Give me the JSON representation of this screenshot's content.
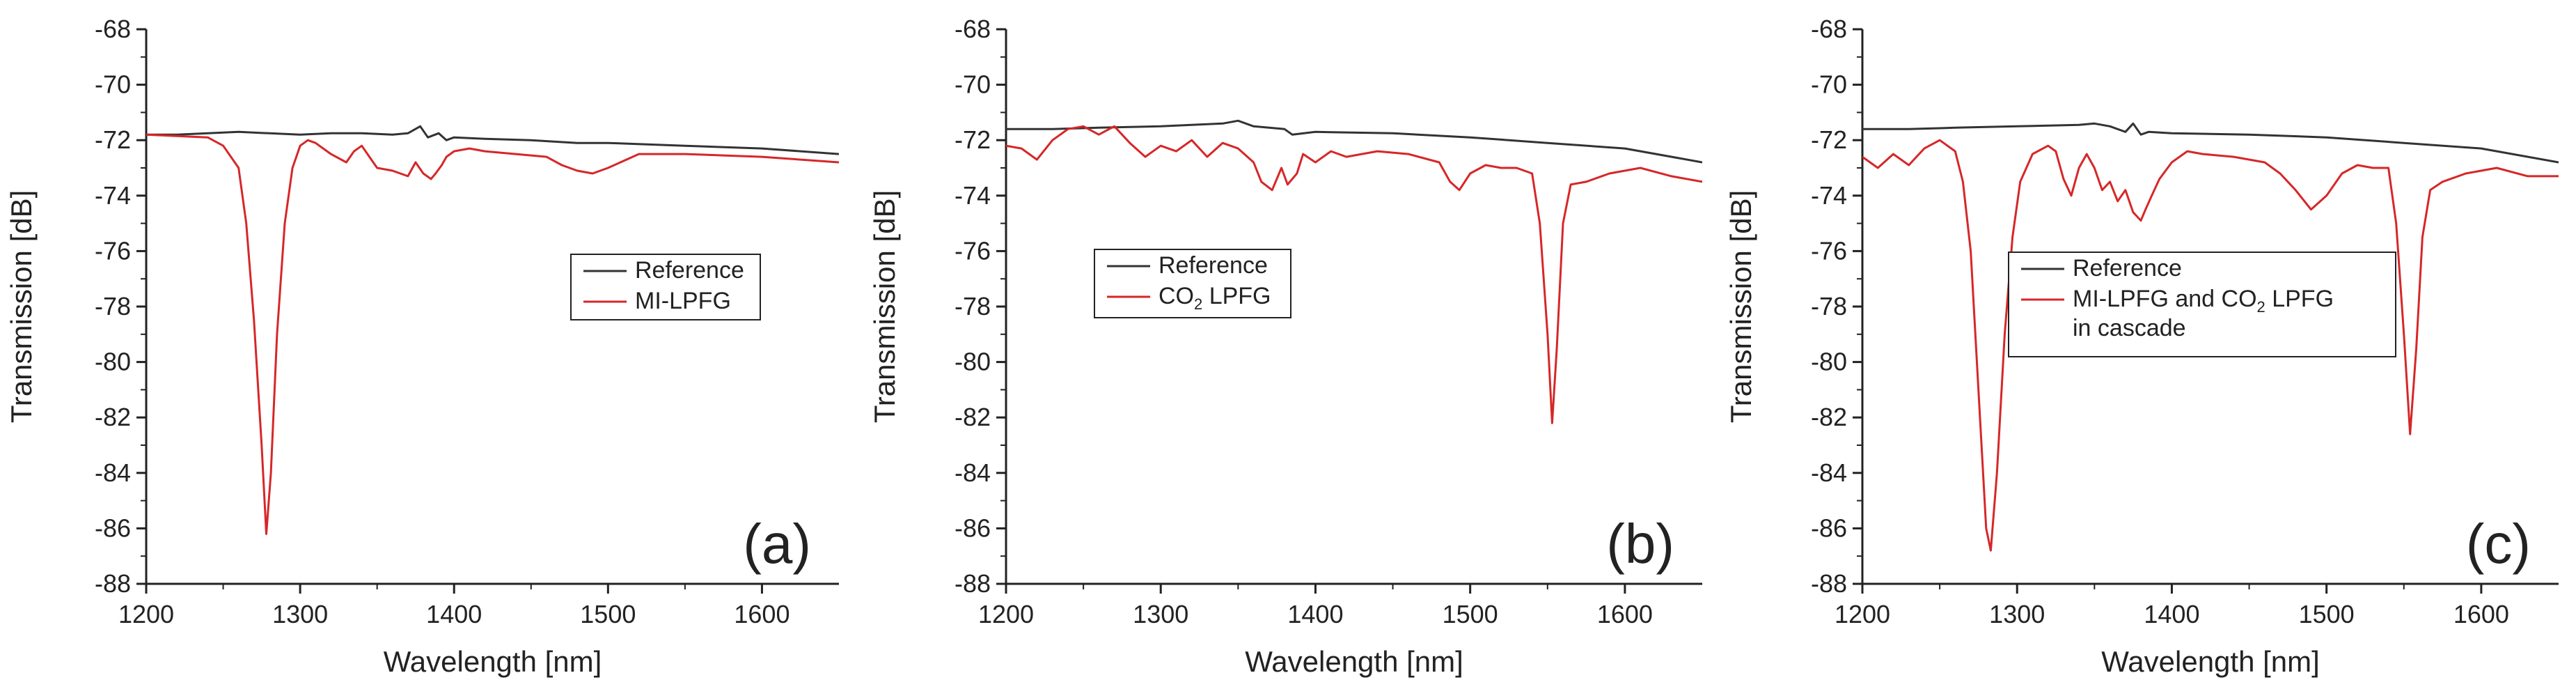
{
  "figure": {
    "panels": [
      "a",
      "b",
      "c"
    ]
  },
  "chart_data": [
    {
      "type": "line",
      "panel_label": "(a)",
      "xlabel": "Wavelength [nm]",
      "ylabel": "Transmission [dB]",
      "xlim": [
        1200,
        1650
      ],
      "ylim": [
        -88,
        -68
      ],
      "xticks": [
        1200,
        1300,
        1400,
        1500,
        1600
      ],
      "xtick_labels": [
        "1200",
        "1300",
        "1400",
        "1500",
        "1600"
      ],
      "yticks": [
        -68,
        -70,
        -72,
        -74,
        -76,
        -78,
        -80,
        -82,
        -84,
        -86,
        -88
      ],
      "ytick_labels": [
        "-68",
        "-70",
        "-72",
        "-74",
        "-76",
        "-78",
        "-80",
        "-82",
        "-84",
        "-86",
        "-88"
      ],
      "legend": {
        "placement": "center-right",
        "entries": [
          {
            "label": "Reference",
            "color": "#333333"
          },
          {
            "label": "MI-LPFG",
            "color": "#d62728"
          }
        ]
      },
      "series": [
        {
          "name": "Reference",
          "color": "#333333",
          "x": [
            1200,
            1220,
            1240,
            1260,
            1280,
            1300,
            1320,
            1340,
            1360,
            1370,
            1378,
            1383,
            1390,
            1395,
            1400,
            1420,
            1450,
            1480,
            1500,
            1550,
            1600,
            1650
          ],
          "y": [
            -71.8,
            -71.8,
            -71.75,
            -71.7,
            -71.75,
            -71.8,
            -71.75,
            -71.75,
            -71.8,
            -71.75,
            -71.5,
            -71.9,
            -71.75,
            -72.0,
            -71.9,
            -71.95,
            -72.0,
            -72.1,
            -72.1,
            -72.2,
            -72.3,
            -72.5
          ]
        },
        {
          "name": "MI-LPFG",
          "color": "#d62728",
          "x": [
            1200,
            1220,
            1240,
            1250,
            1260,
            1265,
            1270,
            1275,
            1278,
            1281,
            1285,
            1290,
            1295,
            1300,
            1305,
            1310,
            1320,
            1330,
            1335,
            1340,
            1345,
            1350,
            1360,
            1370,
            1375,
            1380,
            1385,
            1388,
            1392,
            1395,
            1400,
            1410,
            1420,
            1440,
            1460,
            1470,
            1480,
            1490,
            1500,
            1520,
            1550,
            1600,
            1650
          ],
          "y": [
            -71.8,
            -71.85,
            -71.9,
            -72.2,
            -73.0,
            -75.0,
            -78.5,
            -83.0,
            -86.2,
            -84.0,
            -79.0,
            -75.0,
            -73.0,
            -72.2,
            -72.0,
            -72.1,
            -72.5,
            -72.8,
            -72.4,
            -72.2,
            -72.6,
            -73.0,
            -73.1,
            -73.3,
            -72.8,
            -73.2,
            -73.4,
            -73.2,
            -72.9,
            -72.6,
            -72.4,
            -72.3,
            -72.4,
            -72.5,
            -72.6,
            -72.9,
            -73.1,
            -73.2,
            -73.0,
            -72.5,
            -72.5,
            -72.6,
            -72.8
          ]
        }
      ]
    },
    {
      "type": "line",
      "panel_label": "(b)",
      "xlabel": "Wavelength [nm]",
      "ylabel": "Transmission [dB]",
      "xlim": [
        1200,
        1650
      ],
      "ylim": [
        -88,
        -68
      ],
      "xticks": [
        1200,
        1300,
        1400,
        1500,
        1600
      ],
      "xtick_labels": [
        "1200",
        "1300",
        "1400",
        "1500",
        "1600"
      ],
      "yticks": [
        -68,
        -70,
        -72,
        -74,
        -76,
        -78,
        -80,
        -82,
        -84,
        -86,
        -88
      ],
      "ytick_labels": [
        "-68",
        "-70",
        "-72",
        "-74",
        "-76",
        "-78",
        "-80",
        "-82",
        "-84",
        "-86",
        "-88"
      ],
      "legend": {
        "placement": "center-left",
        "entries": [
          {
            "label": "Reference",
            "color": "#333333"
          },
          {
            "label": "CO",
            "label_sub": "2",
            "label_suffix": " LPFG",
            "color": "#d62728"
          }
        ]
      },
      "series": [
        {
          "name": "Reference",
          "color": "#333333",
          "x": [
            1200,
            1230,
            1260,
            1300,
            1340,
            1350,
            1360,
            1380,
            1385,
            1400,
            1450,
            1500,
            1550,
            1600,
            1650
          ],
          "y": [
            -71.6,
            -71.6,
            -71.55,
            -71.5,
            -71.4,
            -71.3,
            -71.5,
            -71.6,
            -71.8,
            -71.7,
            -71.75,
            -71.9,
            -72.1,
            -72.3,
            -72.8
          ]
        },
        {
          "name": "CO2 LPFG",
          "color": "#d62728",
          "x": [
            1200,
            1210,
            1220,
            1230,
            1240,
            1250,
            1260,
            1270,
            1280,
            1290,
            1300,
            1310,
            1320,
            1330,
            1340,
            1350,
            1360,
            1365,
            1372,
            1378,
            1382,
            1388,
            1392,
            1400,
            1410,
            1420,
            1440,
            1460,
            1480,
            1487,
            1493,
            1500,
            1510,
            1520,
            1530,
            1540,
            1545,
            1550,
            1553,
            1556,
            1560,
            1565,
            1575,
            1590,
            1610,
            1630,
            1650
          ],
          "y": [
            -72.2,
            -72.3,
            -72.7,
            -72.0,
            -71.6,
            -71.5,
            -71.8,
            -71.5,
            -72.1,
            -72.6,
            -72.2,
            -72.4,
            -72.0,
            -72.6,
            -72.1,
            -72.3,
            -72.8,
            -73.5,
            -73.8,
            -73.0,
            -73.6,
            -73.2,
            -72.5,
            -72.8,
            -72.4,
            -72.6,
            -72.4,
            -72.5,
            -72.8,
            -73.5,
            -73.8,
            -73.2,
            -72.9,
            -73.0,
            -73.0,
            -73.2,
            -75.0,
            -79.0,
            -82.2,
            -79.5,
            -75.0,
            -73.6,
            -73.5,
            -73.2,
            -73.0,
            -73.3,
            -73.5
          ]
        }
      ]
    },
    {
      "type": "line",
      "panel_label": "(c)",
      "xlabel": "Wavelength [nm]",
      "ylabel": "Transmission [dB]",
      "xlim": [
        1200,
        1650
      ],
      "ylim": [
        -88,
        -68
      ],
      "xticks": [
        1200,
        1300,
        1400,
        1500,
        1600
      ],
      "xtick_labels": [
        "1200",
        "1300",
        "1400",
        "1500",
        "1600"
      ],
      "yticks": [
        -68,
        -70,
        -72,
        -74,
        -76,
        -78,
        -80,
        -82,
        -84,
        -86,
        -88
      ],
      "ytick_labels": [
        "-68",
        "-70",
        "-72",
        "-74",
        "-76",
        "-78",
        "-80",
        "-82",
        "-84",
        "-86",
        "-88"
      ],
      "legend": {
        "placement": "center",
        "entries": [
          {
            "label": "Reference",
            "color": "#333333"
          },
          {
            "label": "MI-LPFG and CO",
            "label_sub": "2",
            "label_suffix": " LPFG",
            "label_line2": "in cascade",
            "color": "#d62728"
          }
        ]
      },
      "series": [
        {
          "name": "Reference",
          "color": "#333333",
          "x": [
            1200,
            1230,
            1260,
            1300,
            1340,
            1350,
            1360,
            1370,
            1375,
            1380,
            1385,
            1400,
            1450,
            1500,
            1550,
            1600,
            1650
          ],
          "y": [
            -71.6,
            -71.6,
            -71.55,
            -71.5,
            -71.45,
            -71.4,
            -71.5,
            -71.7,
            -71.4,
            -71.8,
            -71.7,
            -71.75,
            -71.8,
            -71.9,
            -72.1,
            -72.3,
            -72.8
          ]
        },
        {
          "name": "MI-LPFG and CO2 LPFG in cascade",
          "color": "#d62728",
          "x": [
            1200,
            1210,
            1220,
            1230,
            1240,
            1250,
            1260,
            1265,
            1270,
            1275,
            1280,
            1283,
            1287,
            1292,
            1297,
            1302,
            1310,
            1320,
            1325,
            1330,
            1335,
            1340,
            1345,
            1350,
            1355,
            1360,
            1365,
            1370,
            1375,
            1380,
            1383,
            1387,
            1392,
            1400,
            1410,
            1420,
            1440,
            1460,
            1470,
            1480,
            1490,
            1500,
            1510,
            1520,
            1530,
            1540,
            1545,
            1550,
            1554,
            1558,
            1562,
            1567,
            1575,
            1590,
            1610,
            1630,
            1650
          ],
          "y": [
            -72.6,
            -73.0,
            -72.5,
            -72.9,
            -72.3,
            -72.0,
            -72.4,
            -73.5,
            -76.0,
            -81.0,
            -86.0,
            -86.8,
            -84.0,
            -79.0,
            -75.5,
            -73.5,
            -72.5,
            -72.2,
            -72.4,
            -73.4,
            -74.0,
            -73.0,
            -72.5,
            -73.0,
            -73.8,
            -73.5,
            -74.2,
            -73.8,
            -74.6,
            -74.9,
            -74.5,
            -74.0,
            -73.4,
            -72.8,
            -72.4,
            -72.5,
            -72.6,
            -72.8,
            -73.2,
            -73.8,
            -74.5,
            -74.0,
            -73.2,
            -72.9,
            -73.0,
            -73.0,
            -75.0,
            -79.0,
            -82.6,
            -79.5,
            -75.5,
            -73.8,
            -73.5,
            -73.2,
            -73.0,
            -73.3,
            -73.3
          ]
        }
      ]
    }
  ]
}
